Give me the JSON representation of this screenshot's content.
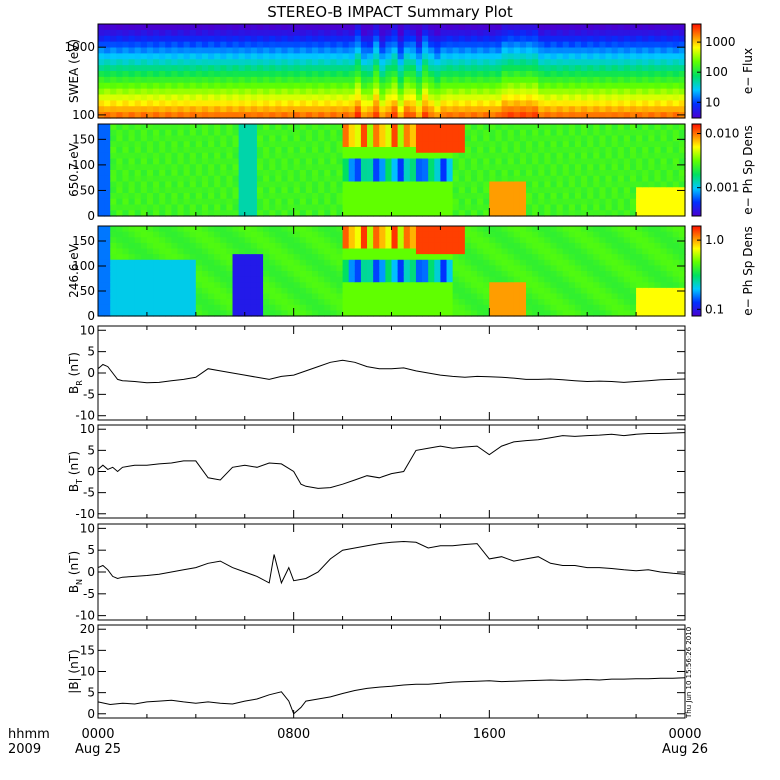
{
  "title": "STEREO-B IMPACT Summary Plot",
  "stamp": "Thu Jun 10 15:56:26 2010",
  "time_axis": {
    "row1_label": "hhmm",
    "row2_label": "2009",
    "ticks": [
      {
        "t": 0,
        "label": "0000",
        "sub": "Aug 25"
      },
      {
        "t": 8,
        "label": "0800",
        "sub": ""
      },
      {
        "t": 16,
        "label": "1600",
        "sub": ""
      },
      {
        "t": 24,
        "label": "0000",
        "sub": "Aug 26"
      }
    ],
    "range_hours": [
      0,
      24
    ]
  },
  "chart_data": [
    {
      "type": "heatmap",
      "ylabel": "SWEA (eV)",
      "yscale": "log",
      "ylim": [
        90,
        2200
      ],
      "yticks": [
        100,
        1000
      ],
      "ytick_labels": [
        "100",
        "1000"
      ],
      "colorbar": {
        "label": "e− Flux",
        "scale": "log",
        "range": [
          3,
          4000
        ],
        "ticks": [
          10,
          100,
          1000
        ],
        "tick_labels": [
          "10",
          "100",
          "1000"
        ]
      },
      "notes": "Log-scaled electron flux; highest flux at low energies (~100–200 eV), decreasing with energy."
    },
    {
      "type": "heatmap",
      "ylabel": "650.7 eV",
      "ylim": [
        0,
        180
      ],
      "yticks": [
        0,
        50,
        100,
        150
      ],
      "colorbar": {
        "label": "e− Ph Sp Dens",
        "scale": "log",
        "range": [
          0.0003,
          0.015
        ],
        "ticks": [
          0.001,
          0.01
        ],
        "tick_labels": [
          "0.001",
          "0.010"
        ]
      }
    },
    {
      "type": "heatmap",
      "ylabel": "246.6 eV",
      "ylim": [
        0,
        180
      ],
      "yticks": [
        0,
        50,
        100,
        150
      ],
      "colorbar": {
        "label": "e− Ph Sp Dens",
        "scale": "log",
        "range": [
          0.08,
          1.6
        ],
        "ticks": [
          0.1,
          1.0
        ],
        "tick_labels": [
          "0.1",
          "1.0"
        ]
      }
    },
    {
      "type": "line",
      "ylabel": "B_R (nT)",
      "ylabel_main": "B",
      "ylabel_sub": "R",
      "ylabel_unit": " (nT)",
      "ylim": [
        -11,
        11
      ],
      "yticks": [
        -10,
        -5,
        0,
        5,
        10
      ],
      "x": [
        0,
        0.2,
        0.4,
        0.6,
        0.8,
        1,
        1.5,
        2,
        2.5,
        3,
        3.5,
        4,
        4.5,
        5,
        5.5,
        6,
        6.5,
        7,
        7.5,
        8,
        8.5,
        9,
        9.5,
        10,
        10.5,
        11,
        11.5,
        12,
        12.5,
        13,
        13.5,
        14,
        14.5,
        15,
        15.5,
        16,
        16.5,
        17,
        17.5,
        18,
        18.5,
        19,
        19.5,
        20,
        20.5,
        21,
        21.5,
        22,
        22.5,
        23,
        23.5,
        24
      ],
      "y": [
        1,
        2,
        1.5,
        0,
        -1.5,
        -1.8,
        -2,
        -2.3,
        -2.2,
        -1.8,
        -1.5,
        -1,
        1,
        0.5,
        0,
        -0.5,
        -1,
        -1.5,
        -0.8,
        -0.5,
        0.5,
        1.5,
        2.5,
        3,
        2.5,
        1.5,
        1,
        1,
        1.2,
        0.5,
        0,
        -0.5,
        -0.8,
        -1,
        -0.8,
        -0.9,
        -1,
        -1.2,
        -1.5,
        -1.5,
        -1.4,
        -1.6,
        -1.8,
        -2,
        -1.9,
        -2,
        -2.2,
        -2,
        -1.8,
        -1.6,
        -1.5,
        -1.4
      ]
    },
    {
      "type": "line",
      "ylabel": "B_T (nT)",
      "ylabel_main": "B",
      "ylabel_sub": "T",
      "ylabel_unit": " (nT)",
      "ylim": [
        -11,
        11
      ],
      "yticks": [
        -10,
        -5,
        0,
        5,
        10
      ],
      "x": [
        0,
        0.2,
        0.4,
        0.6,
        0.8,
        1,
        1.5,
        2,
        2.5,
        3,
        3.5,
        4,
        4.5,
        5,
        5.5,
        6,
        6.5,
        7,
        7.5,
        8,
        8.3,
        8.5,
        9,
        9.5,
        10,
        10.5,
        11,
        11.5,
        12,
        12.5,
        13,
        13.5,
        14,
        14.5,
        15,
        15.5,
        16,
        16.5,
        17,
        17.5,
        18,
        18.5,
        19,
        19.5,
        20,
        20.5,
        21,
        21.5,
        22,
        22.5,
        23,
        23.5,
        24
      ],
      "y": [
        0.5,
        1.5,
        0.5,
        1,
        0,
        1,
        1.5,
        1.5,
        1.8,
        2,
        2.5,
        2.5,
        -1.5,
        -2,
        1,
        1.5,
        1,
        2,
        1.8,
        0,
        -3,
        -3.5,
        -4,
        -3.8,
        -3,
        -2,
        -1,
        -1.5,
        -0.5,
        0,
        5,
        5.5,
        6,
        5.5,
        5.8,
        6,
        4,
        6,
        7,
        7.3,
        7.5,
        8,
        8.5,
        8.3,
        8.5,
        8.6,
        8.8,
        8.5,
        8.8,
        9,
        9,
        9.1,
        9.2
      ]
    },
    {
      "type": "line",
      "ylabel": "B_N (nT)",
      "ylabel_main": "B",
      "ylabel_sub": "N",
      "ylabel_unit": " (nT)",
      "ylim": [
        -11,
        11
      ],
      "yticks": [
        -10,
        -5,
        0,
        5,
        10
      ],
      "x": [
        0,
        0.2,
        0.4,
        0.6,
        0.8,
        1,
        1.5,
        2,
        2.5,
        3,
        3.5,
        4,
        4.5,
        5,
        5.5,
        6,
        6.5,
        7,
        7.2,
        7.5,
        7.8,
        8,
        8.5,
        9,
        9.5,
        10,
        10.5,
        11,
        11.5,
        12,
        12.5,
        13,
        13.5,
        14,
        14.5,
        15,
        15.5,
        16,
        16.5,
        17,
        17.5,
        18,
        18.5,
        19,
        19.5,
        20,
        20.5,
        21,
        21.5,
        22,
        22.5,
        23,
        23.5,
        24
      ],
      "y": [
        1,
        1.5,
        0.5,
        -1,
        -1.5,
        -1.2,
        -1,
        -0.8,
        -0.5,
        0,
        0.5,
        1,
        2,
        2.5,
        1,
        0,
        -1,
        -2.5,
        4,
        -2.5,
        1,
        -2,
        -1.5,
        0,
        3,
        5,
        5.5,
        6,
        6.5,
        6.8,
        7,
        6.8,
        5.5,
        6,
        6,
        6.3,
        6.5,
        3,
        3.5,
        2.5,
        3,
        3.5,
        2,
        1.5,
        1.5,
        1,
        1,
        0.8,
        0.5,
        0.3,
        0.5,
        0,
        -0.3,
        -0.5
      ]
    },
    {
      "type": "line",
      "ylabel": "|B| (nT)",
      "ylabel_main": "|B|",
      "ylabel_sub": "",
      "ylabel_unit": " (nT)",
      "ylim": [
        -1,
        21
      ],
      "yticks": [
        0,
        5,
        10,
        15,
        20
      ],
      "x": [
        0,
        0.5,
        1,
        1.5,
        2,
        2.5,
        3,
        3.5,
        4,
        4.5,
        5,
        5.5,
        6,
        6.5,
        7,
        7.5,
        7.8,
        8,
        8.3,
        8.5,
        9,
        9.5,
        10,
        10.5,
        11,
        11.5,
        12,
        12.5,
        13,
        13.5,
        14,
        14.5,
        15,
        15.5,
        16,
        16.5,
        17,
        17.5,
        18,
        18.5,
        19,
        19.5,
        20,
        20.5,
        21,
        21.5,
        22,
        22.5,
        23,
        23.5,
        24
      ],
      "y": [
        2.8,
        2.2,
        2.5,
        2.3,
        2.8,
        3,
        3.2,
        2.8,
        2.5,
        2.8,
        2.5,
        2.3,
        3,
        3.5,
        4.5,
        5.2,
        3,
        0,
        1.5,
        3,
        3.5,
        4,
        4.8,
        5.5,
        6,
        6.3,
        6.5,
        6.8,
        7,
        7,
        7.2,
        7.5,
        7.6,
        7.7,
        7.8,
        7.6,
        7.7,
        7.8,
        7.9,
        8,
        7.9,
        8,
        8.1,
        8,
        8.2,
        8.2,
        8.3,
        8.3,
        8.4,
        8.4,
        8.5
      ]
    }
  ]
}
